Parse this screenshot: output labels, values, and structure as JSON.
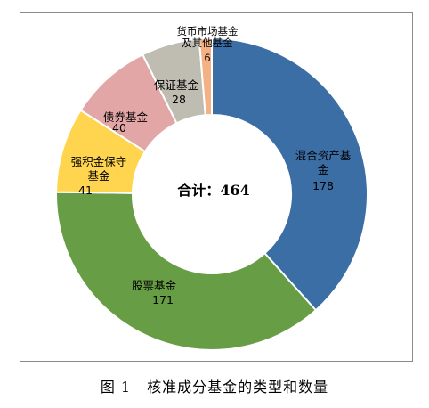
{
  "chart_data": {
    "type": "pie",
    "variant": "donut",
    "center_label": "合计：464",
    "total": 464,
    "slices": [
      {
        "label_lines": [
          "混合资产基",
          "金"
        ],
        "value": 178,
        "color": "#3C6EA6"
      },
      {
        "label_lines": [
          "股票基金"
        ],
        "value": 171,
        "color": "#679D45"
      },
      {
        "label_lines": [
          "强积金保守",
          "基金"
        ],
        "value": 41,
        "color": "#FFD54F"
      },
      {
        "label_lines": [
          "债券基金"
        ],
        "value": 40,
        "color": "#E2A6A6"
      },
      {
        "label_lines": [
          "保证基金"
        ],
        "value": 28,
        "color": "#BFBDB2"
      },
      {
        "label_lines": [
          "货币市场基金",
          "及其他基金"
        ],
        "value": 6,
        "color": "#F4B183"
      }
    ]
  },
  "caption": {
    "figure_number": "图 1",
    "title": "核准成分基金的类型和数量"
  }
}
